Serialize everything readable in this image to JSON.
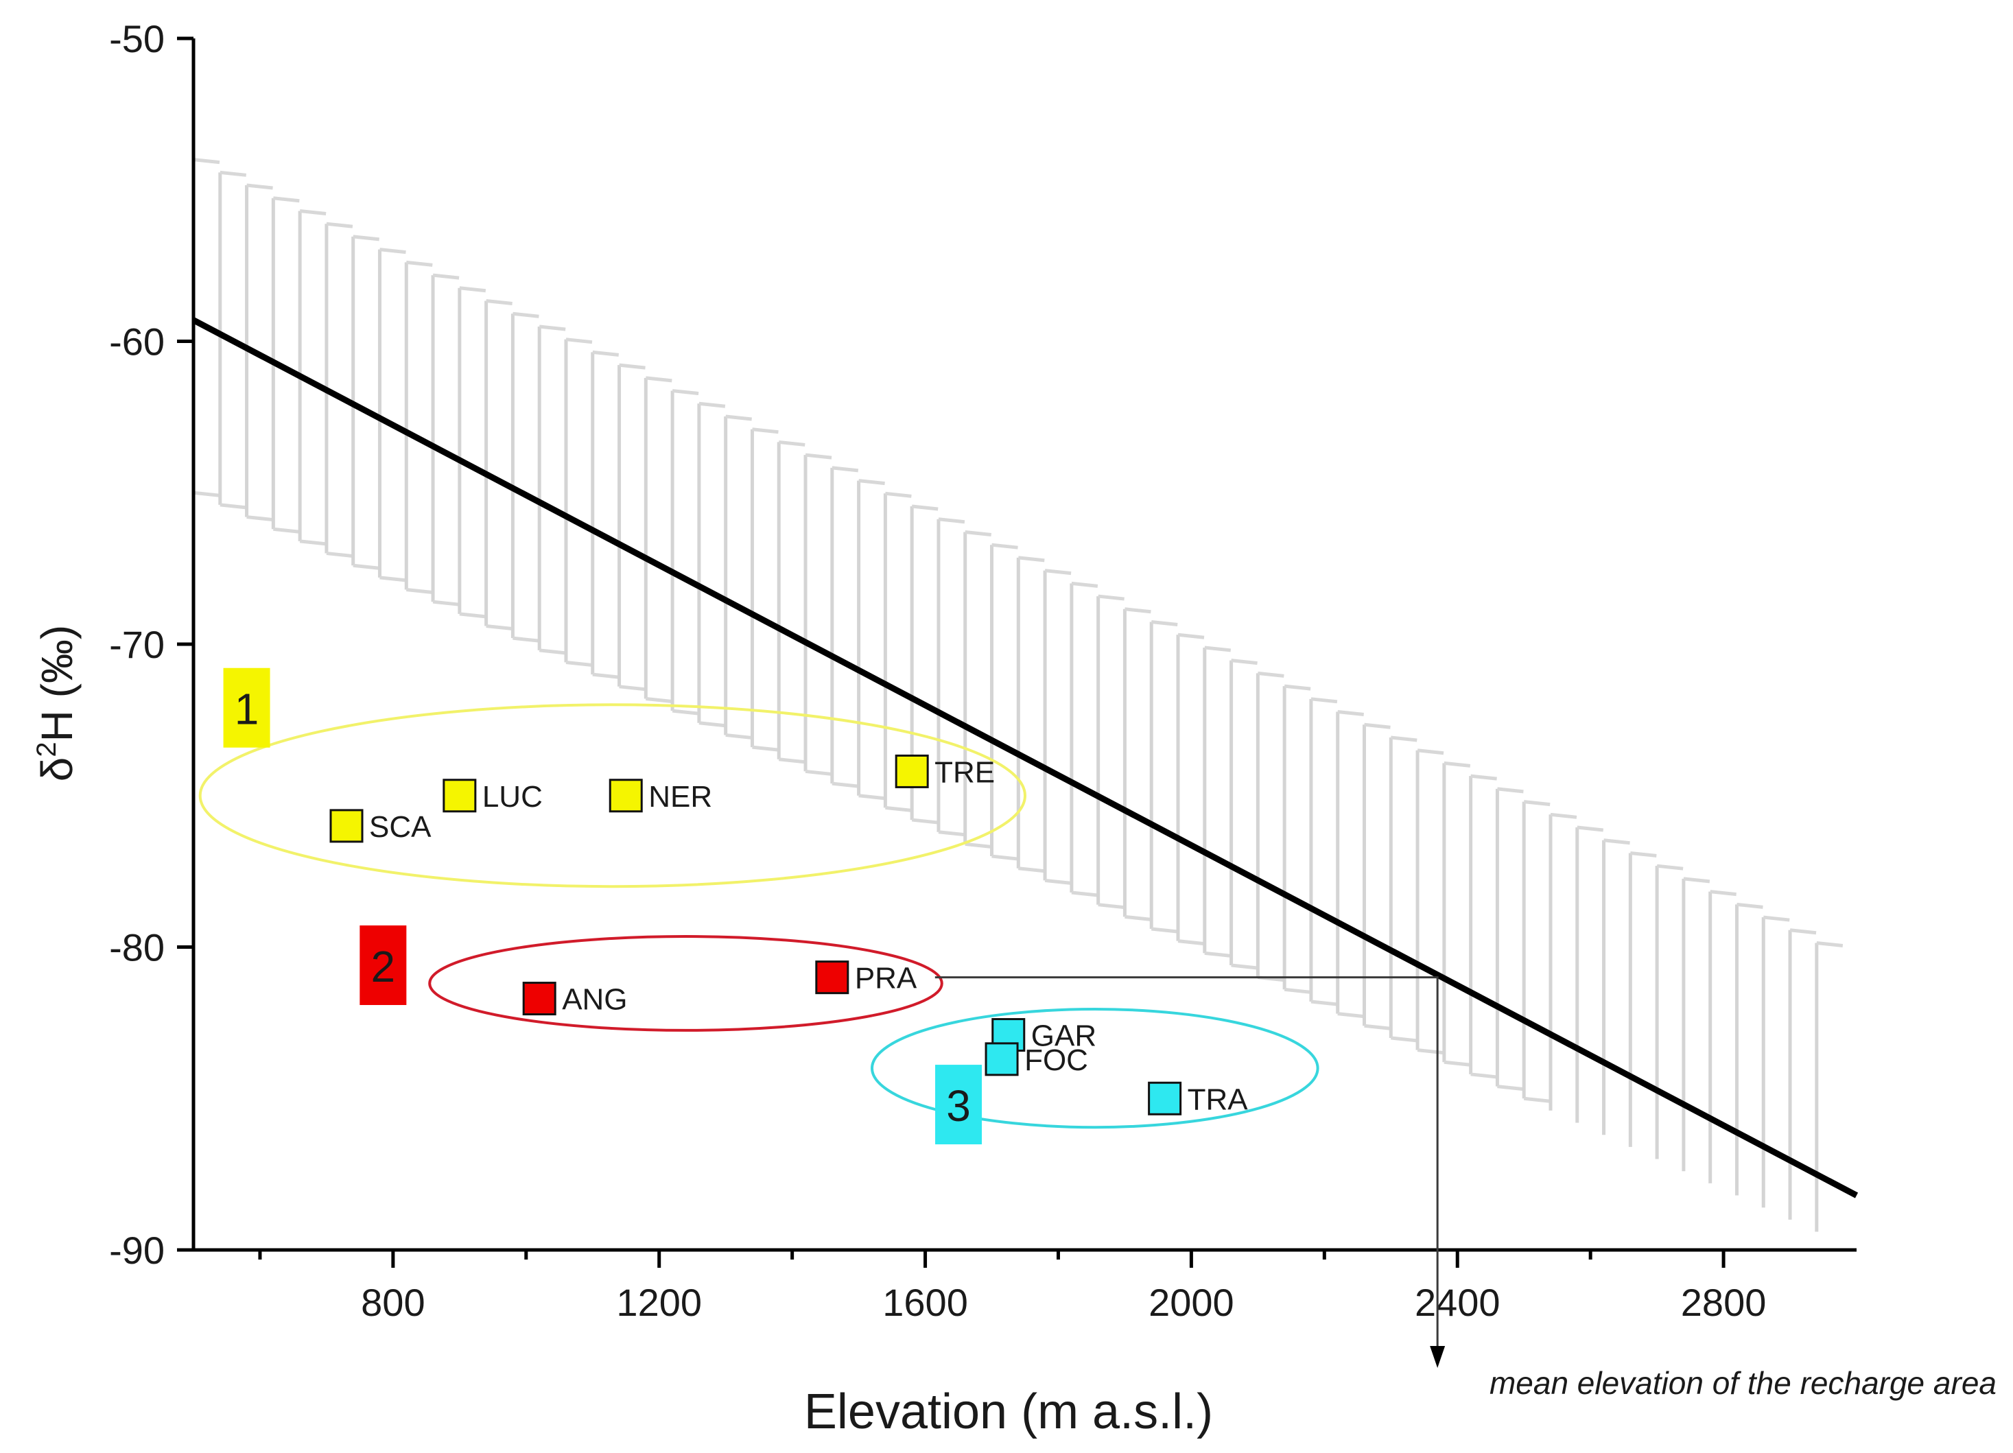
{
  "chart_data": {
    "type": "scatter",
    "title": "",
    "xlabel": "Elevation (m a.s.l.)",
    "ylabel_prefix": "δ",
    "ylabel_sup": "2",
    "ylabel_suffix": "H (‰)",
    "xlim": [
      500,
      3000
    ],
    "ylim": [
      -90,
      -50
    ],
    "xticks": [
      800,
      1200,
      1600,
      2000,
      2400,
      2800
    ],
    "yticks": [
      -50,
      -60,
      -70,
      -80,
      -90
    ],
    "grid": false,
    "regression_line": {
      "x": [
        500,
        3000
      ],
      "y": [
        -59.3,
        -88.2
      ]
    },
    "confidence_band": {
      "upper": [
        -54,
        -80.5
      ],
      "lower": [
        -65,
        -90
      ],
      "x_end": [
        2940,
        2500
      ]
    },
    "series": [
      {
        "name": "1",
        "color": "#f5f500",
        "points": [
          {
            "label": "SCA",
            "x": 730,
            "y": -76.0
          },
          {
            "label": "LUC",
            "x": 900,
            "y": -75.0
          },
          {
            "label": "NER",
            "x": 1150,
            "y": -75.0
          },
          {
            "label": "TRE",
            "x": 1580,
            "y": -74.2
          }
        ]
      },
      {
        "name": "2",
        "color": "#ee0000",
        "points": [
          {
            "label": "ANG",
            "x": 1020,
            "y": -81.7
          },
          {
            "label": "PRA",
            "x": 1460,
            "y": -81.0
          }
        ]
      },
      {
        "name": "3",
        "color": "#2ee8f0",
        "points": [
          {
            "label": "GAR",
            "x": 1725,
            "y": -82.9
          },
          {
            "label": "FOC",
            "x": 1715,
            "y": -83.7
          },
          {
            "label": "TRA",
            "x": 1960,
            "y": -85.0
          }
        ]
      }
    ],
    "group_ellipses": [
      {
        "group": "1",
        "color": "#f2f26a",
        "cx": 1130,
        "cy": -75.0,
        "rx": 620,
        "ry": 3.0
      },
      {
        "group": "2",
        "color": "#d11b2a",
        "cx": 1240,
        "cy": -81.2,
        "rx": 385,
        "ry": 1.55
      },
      {
        "group": "3",
        "color": "#37d6dd",
        "cx": 1855,
        "cy": -84.0,
        "rx": 335,
        "ry": 1.95
      }
    ],
    "group_labels": [
      {
        "text": "1",
        "color": "#f5f500",
        "x": 580,
        "y": -72.1
      },
      {
        "text": "2",
        "color": "#ee0000",
        "x": 785,
        "y": -80.6
      },
      {
        "text": "3",
        "color": "#2ee8f0",
        "x": 1650,
        "y": -85.2
      }
    ],
    "annotation": {
      "text": "mean elevation of the recharge area",
      "from_point": "PRA",
      "x": 2370,
      "y": -81.0
    }
  }
}
